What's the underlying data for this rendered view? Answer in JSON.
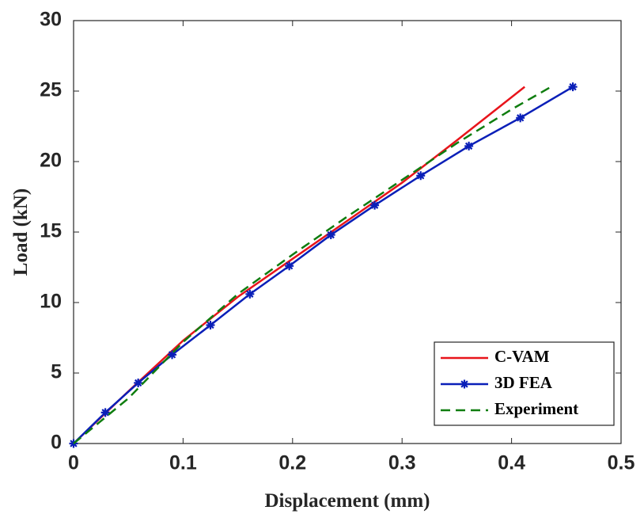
{
  "chart_data": {
    "type": "line",
    "x_label": "Displacement (mm)",
    "y_label": "Load (kN)",
    "xlim": [
      0,
      0.5
    ],
    "xticks": [
      0,
      0.1,
      0.2,
      0.3,
      0.4,
      0.5
    ],
    "ylim": [
      0,
      30
    ],
    "yticks": [
      0,
      5,
      10,
      15,
      20,
      25,
      30
    ],
    "grid": false,
    "legend": "lower right",
    "series": [
      {
        "name": "C-VAM",
        "color": "#e8141b",
        "linestyle": "solid",
        "marker": null,
        "x": [
          0,
          0.05,
          0.1,
          0.15,
          0.2,
          0.25,
          0.3,
          0.35,
          0.412
        ],
        "values": [
          0,
          3.7,
          7.3,
          10.4,
          13.1,
          15.8,
          18.5,
          21.5,
          25.3
        ]
      },
      {
        "name": "3D FEA",
        "color": "#0a1fb8",
        "linestyle": "solid",
        "marker": "star",
        "x": [
          0,
          0.029,
          0.059,
          0.09,
          0.125,
          0.161,
          0.197,
          0.235,
          0.275,
          0.317,
          0.361,
          0.408,
          0.456
        ],
        "values": [
          0,
          2.2,
          4.3,
          6.3,
          8.4,
          10.6,
          12.6,
          14.8,
          16.9,
          19.0,
          21.1,
          23.1,
          25.3
        ]
      },
      {
        "name": "Experiment",
        "color": "#0f7d0f",
        "linestyle": "dashed",
        "marker": null,
        "x": [
          0,
          0.05,
          0.1,
          0.15,
          0.2,
          0.25,
          0.3,
          0.35,
          0.4,
          0.436
        ],
        "values": [
          0,
          3.2,
          7.2,
          10.6,
          13.4,
          16.1,
          18.7,
          21.3,
          23.7,
          25.3
        ]
      }
    ]
  }
}
